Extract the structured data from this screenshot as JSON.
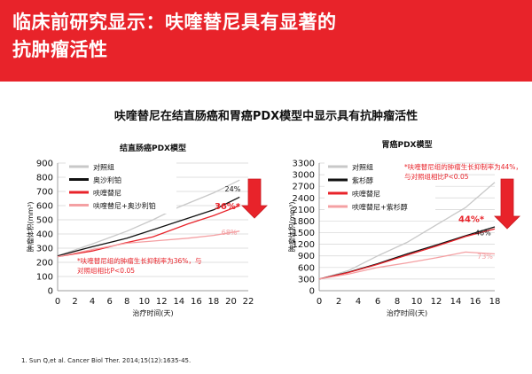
{
  "header": {
    "title_line1": "临床前研究显示：呋喹替尼具有显著的",
    "title_line2": "抗肿瘤活性"
  },
  "subtitle": "呋喹替尼在结直肠癌和胃癌PDX模型中显示具有抗肿瘤活性",
  "footnote": "1.  Sun Q,et al. Cancer Biol Ther. 2014;15(12):1635-45.",
  "colors": {
    "accent": "#e8232a",
    "control": "#c8c8c8",
    "ref_drug": "#111111",
    "fruquintinib": "#e8232a",
    "combo": "#f4a0a3"
  },
  "chart_data": [
    {
      "type": "line",
      "title": "结直肠癌PDX模型",
      "xlabel": "治疗时间(天)",
      "ylabel": "肿瘤体积(mm³)",
      "xlim": [
        0,
        22
      ],
      "ylim": [
        0,
        900
      ],
      "xticks": [
        0,
        2,
        4,
        6,
        8,
        10,
        12,
        14,
        16,
        18,
        20,
        22
      ],
      "yticks": [
        0,
        100,
        200,
        300,
        400,
        500,
        600,
        700,
        800,
        900
      ],
      "grid": true,
      "legend": "top-left",
      "series": [
        {
          "name": "对照组",
          "color": "#c8c8c8",
          "x": [
            0,
            4,
            8,
            11,
            14,
            18,
            21
          ],
          "y": [
            245,
            330,
            420,
            500,
            590,
            690,
            780
          ]
        },
        {
          "name": "奥沙利铂",
          "color": "#111111",
          "x": [
            0,
            4,
            8,
            11,
            15,
            18,
            21
          ],
          "y": [
            245,
            310,
            370,
            430,
            510,
            570,
            660
          ]
        },
        {
          "name": "呋喹替尼",
          "color": "#e8232a",
          "x": [
            0,
            4,
            8,
            11,
            15,
            18,
            21
          ],
          "y": [
            240,
            280,
            340,
            380,
            470,
            530,
            600
          ]
        },
        {
          "name": "呋喹替尼+奥沙利铂",
          "color": "#f4a0a3",
          "x": [
            0,
            4,
            8,
            11,
            15,
            18,
            21
          ],
          "y": [
            240,
            290,
            335,
            350,
            370,
            390,
            420
          ]
        }
      ],
      "labels": [
        {
          "text": "24%",
          "x": 20.2,
          "y": 700,
          "color": "#111111",
          "bold": false
        },
        {
          "text": "36%*",
          "x": 19.6,
          "y": 575,
          "color": "#e8232a",
          "bold": true
        },
        {
          "text": "68%",
          "x": 19.8,
          "y": 395,
          "color": "#f4a0a3",
          "bold": false
        }
      ],
      "note_lines": [
        "*呋喹替尼组的肿瘤生长抑制率为36%，与",
        "对照组相比P<0.05"
      ]
    },
    {
      "type": "line",
      "title": "胃癌PDX模型",
      "xlabel": "治疗时间(天)",
      "ylabel": "肿瘤体积(mm³)",
      "xlim": [
        0,
        18
      ],
      "ylim": [
        0,
        3300
      ],
      "xticks": [
        0,
        2,
        4,
        6,
        8,
        10,
        12,
        14,
        16,
        18
      ],
      "yticks": [
        0,
        300,
        600,
        900,
        1200,
        1500,
        1800,
        2100,
        2400,
        2700,
        3000,
        3300
      ],
      "grid": true,
      "legend": "top-left",
      "series": [
        {
          "name": "对照组",
          "color": "#c8c8c8",
          "x": [
            0,
            3,
            6,
            9,
            12,
            15,
            18
          ],
          "y": [
            300,
            520,
            900,
            1250,
            1700,
            2150,
            2800
          ]
        },
        {
          "name": "紫杉醇",
          "color": "#111111",
          "x": [
            0,
            3,
            6,
            9,
            12,
            15,
            18
          ],
          "y": [
            300,
            480,
            700,
            950,
            1180,
            1420,
            1650
          ]
        },
        {
          "name": "呋喹替尼",
          "color": "#e8232a",
          "x": [
            0,
            3,
            6,
            9,
            12,
            15,
            18
          ],
          "y": [
            300,
            470,
            680,
            920,
            1150,
            1400,
            1600
          ]
        },
        {
          "name": "呋喹替尼+紫杉醇",
          "color": "#f4a0a3",
          "x": [
            0,
            3,
            6,
            9,
            12,
            15,
            18
          ],
          "y": [
            300,
            430,
            600,
            720,
            850,
            1000,
            950
          ]
        }
      ],
      "labels": [
        {
          "text": "44%*",
          "x": 15.6,
          "y": 1780,
          "color": "#e8232a",
          "bold": true
        },
        {
          "text": "46%",
          "x": 16.8,
          "y": 1430,
          "color": "#111111",
          "bold": false
        },
        {
          "text": "73%",
          "x": 17.0,
          "y": 820,
          "color": "#f4a0a3",
          "bold": false
        }
      ],
      "note_lines": [
        "*呋喹替尼组的肿瘤生长抑制率为44%，",
        "与对照组相比P<0.05"
      ]
    }
  ]
}
